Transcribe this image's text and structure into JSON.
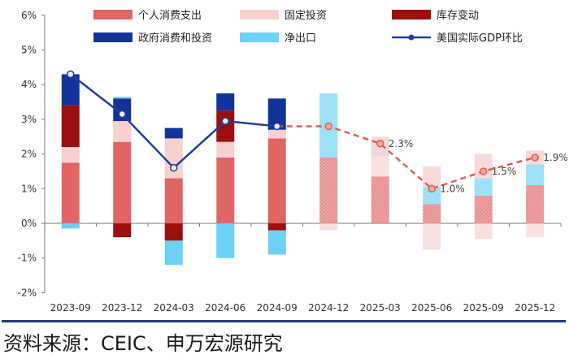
{
  "chart_data": {
    "type": "bar",
    "stacked": true,
    "categories": [
      "2023-09",
      "2023-12",
      "2024-03",
      "2024-06",
      "2024-09",
      "2024-12",
      "2025-03",
      "2025-06",
      "2025-09",
      "2025-12"
    ],
    "forecast_from_index": 5,
    "y_range": [
      -2,
      6
    ],
    "y_ticks": [
      "-2%",
      "-1%",
      "0%",
      "1%",
      "2%",
      "3%",
      "4%",
      "5%",
      "6%"
    ],
    "grid": false,
    "legend_position": "top",
    "series": [
      {
        "name": "个人消费支出",
        "color": "#e06666",
        "values": [
          1.75,
          2.35,
          1.3,
          1.9,
          2.45,
          1.9,
          1.35,
          0.55,
          0.8,
          1.1
        ]
      },
      {
        "name": "固定投资",
        "color": "#f7d0d0",
        "values": [
          0.45,
          0.6,
          1.15,
          0.45,
          0.25,
          -0.2,
          0.6,
          -0.75,
          -0.45,
          -0.4
        ]
      },
      {
        "name": "库存变动",
        "color": "#9b0f0f",
        "values": [
          1.2,
          -0.4,
          -0.5,
          0.9,
          -0.2,
          0.0,
          0.0,
          0.0,
          0.0,
          0.0
        ]
      },
      {
        "name": "政府消费和投资",
        "color": "#12349a",
        "values": [
          0.9,
          0.65,
          0.3,
          0.5,
          0.9,
          0.0,
          0.0,
          0.0,
          0.0,
          0.0
        ]
      },
      {
        "name": "净出口",
        "color": "#6dd1f5",
        "values": [
          -0.15,
          0.05,
          -0.7,
          -1.0,
          -0.7,
          1.85,
          0.5,
          0.5,
          0.5,
          0.6
        ]
      }
    ],
    "forecast_extra": [
      {
        "index": 6,
        "values": [
          {
            "from": 1.95,
            "to": 2.5,
            "color": "#f7d0d0"
          }
        ]
      },
      {
        "index": 7,
        "values": [
          {
            "from": 1.05,
            "to": 1.65,
            "color": "#f7d0d0"
          }
        ]
      },
      {
        "index": 8,
        "values": [
          {
            "from": 1.3,
            "to": 2.0,
            "color": "#f7d0d0"
          }
        ]
      },
      {
        "index": 9,
        "values": [
          {
            "from": 1.7,
            "to": 2.1,
            "color": "#f7d0d0"
          }
        ]
      }
    ],
    "line": {
      "name": "美国实际GDP环比",
      "color": "#1f3f9a",
      "forecast_color": "#e06050",
      "values": [
        4.3,
        3.15,
        1.6,
        2.95,
        2.8,
        2.8,
        2.3,
        1.0,
        1.5,
        1.9
      ]
    },
    "data_labels": [
      {
        "index": 6,
        "text": "2.3%"
      },
      {
        "index": 7,
        "text": "1.0%"
      },
      {
        "index": 8,
        "text": "1.5%"
      },
      {
        "index": 9,
        "text": "1.9%"
      }
    ]
  },
  "legend": [
    {
      "label": "个人消费支出",
      "color": "#e06666",
      "kind": "bar"
    },
    {
      "label": "固定投资",
      "color": "#f7d0d0",
      "kind": "bar"
    },
    {
      "label": "库存变动",
      "color": "#9b0f0f",
      "kind": "bar"
    },
    {
      "label": "政府消费和投资",
      "color": "#12349a",
      "kind": "bar"
    },
    {
      "label": "净出口",
      "color": "#6dd1f5",
      "kind": "bar"
    },
    {
      "label": "美国实际GDP环比",
      "color": "#1f3f9a",
      "kind": "line"
    }
  ],
  "source_text": "资料来源：CEIC、申万宏源研究"
}
